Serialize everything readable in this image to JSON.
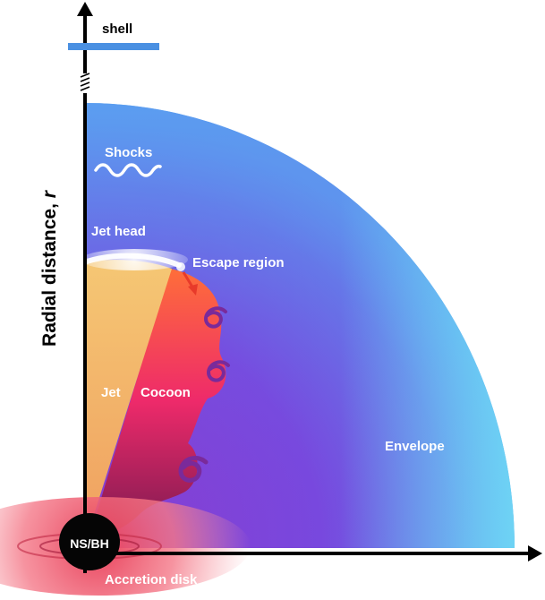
{
  "labels": {
    "shell": "shell",
    "shocks": "Shocks",
    "jet_head": "Jet head",
    "escape_region": "Escape region",
    "jet": "Jet",
    "cocoon": "Cocoon",
    "envelope": "Envelope",
    "central_engine": "NS/BH",
    "accretion_disk": "Accretion disk",
    "y_axis": "Radial distance, ",
    "y_axis_var": "r"
  },
  "icons": {
    "shocks": "wave-icon",
    "escape": "arrow-icon",
    "vortex": "spiral-icon"
  },
  "colors": {
    "envelope_top": "#5b9cf0",
    "envelope_mid": "#7c4fe0",
    "envelope_edge": "#70d8f5",
    "jet_top": "#f5c774",
    "jet_bottom": "#f0a860",
    "cocoon_top": "#ff6a3a",
    "cocoon_mid": "#ee2a6a",
    "cocoon_bottom": "#8a2050",
    "shell_bar": "#4a90e2",
    "disk": "#f36a7a",
    "axis": "#000000"
  }
}
